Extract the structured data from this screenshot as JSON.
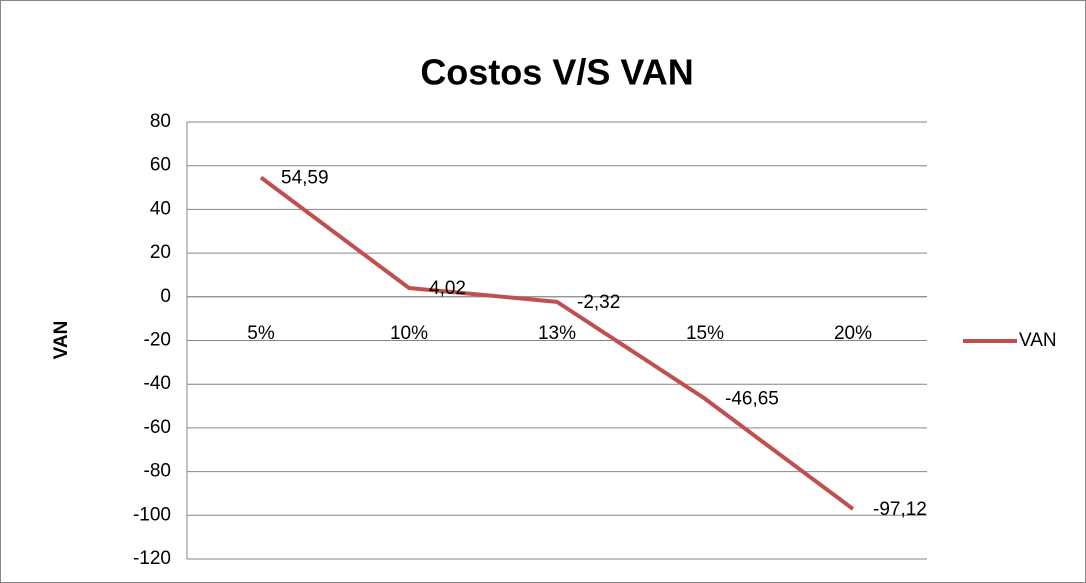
{
  "chart_data": {
    "type": "line",
    "title": "Costos V/S VAN",
    "y_label": "VAN",
    "categories": [
      "5%",
      "10%",
      "13%",
      "15%",
      "20%"
    ],
    "series": [
      {
        "name": "VAN",
        "color": "#c0504d",
        "values": [
          54.59,
          4.02,
          -2.32,
          -46.65,
          -97.12
        ],
        "value_labels": [
          "54,59",
          "4,02",
          "-2,32",
          "-46,65",
          "-97,12"
        ]
      }
    ],
    "ylim": [
      -120,
      80
    ],
    "yticks": [
      -120,
      -100,
      -80,
      -60,
      -40,
      -20,
      0,
      20,
      40,
      60,
      80
    ],
    "grid": true,
    "legend": "right"
  }
}
